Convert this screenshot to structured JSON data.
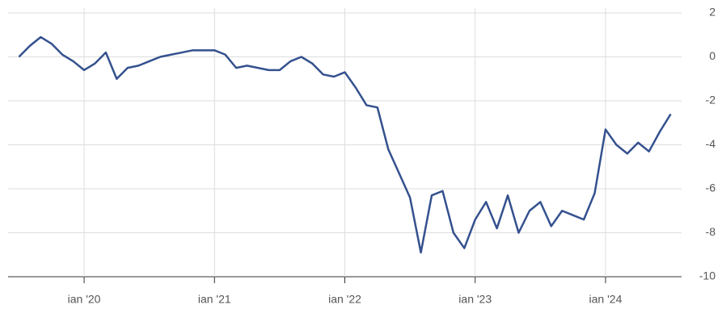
{
  "chart_data": {
    "type": "line",
    "x": [
      "2019-07",
      "2019-08",
      "2019-09",
      "2019-10",
      "2019-11",
      "2019-12",
      "2020-01",
      "2020-02",
      "2020-03",
      "2020-04",
      "2020-05",
      "2020-06",
      "2020-07",
      "2020-08",
      "2020-09",
      "2020-10",
      "2020-11",
      "2020-12",
      "2021-01",
      "2021-02",
      "2021-03",
      "2021-04",
      "2021-05",
      "2021-06",
      "2021-07",
      "2021-08",
      "2021-09",
      "2021-10",
      "2021-11",
      "2021-12",
      "2022-01",
      "2022-02",
      "2022-03",
      "2022-04",
      "2022-05",
      "2022-06",
      "2022-07",
      "2022-08",
      "2022-09",
      "2022-10",
      "2022-11",
      "2022-12",
      "2023-01",
      "2023-02",
      "2023-03",
      "2023-04",
      "2023-05",
      "2023-06",
      "2023-07",
      "2023-08",
      "2023-09",
      "2023-10",
      "2023-11",
      "2023-12",
      "2024-01",
      "2024-02",
      "2024-03",
      "2024-04",
      "2024-05",
      "2024-06",
      "2024-07"
    ],
    "values": [
      0,
      0.5,
      0.9,
      0.6,
      0.1,
      -0.2,
      -0.6,
      -0.3,
      0.2,
      -1.0,
      -0.5,
      -0.4,
      -0.2,
      0.0,
      0.1,
      0.2,
      0.3,
      0.3,
      0.3,
      0.1,
      -0.5,
      -0.4,
      -0.5,
      -0.6,
      -0.6,
      -0.2,
      0.0,
      -0.3,
      -0.8,
      -0.9,
      -0.7,
      -1.4,
      -2.2,
      -2.3,
      -4.2,
      -5.3,
      -6.4,
      -8.9,
      -6.3,
      -6.1,
      -8.0,
      -8.7,
      -7.4,
      -6.6,
      -7.8,
      -6.3,
      -8.0,
      -7.0,
      -6.6,
      -7.7,
      -7.0,
      -7.2,
      -7.4,
      -6.2,
      -3.3,
      -4.0,
      -4.4,
      -3.9,
      -4.3,
      -3.4,
      -2.6
    ],
    "color": "#34518e",
    "xlim": [
      "2019-06",
      "2024-08"
    ],
    "xticks": [
      {
        "value": "2020-01",
        "label": "ian '20"
      },
      {
        "value": "2021-01",
        "label": "ian '21"
      },
      {
        "value": "2022-01",
        "label": "ian '22"
      },
      {
        "value": "2023-01",
        "label": "ian '23"
      },
      {
        "value": "2024-01",
        "label": "ian '24"
      }
    ],
    "ylim": [
      -10,
      2
    ],
    "yticks": [
      -10,
      -8,
      -6,
      -4,
      -2,
      0,
      2
    ],
    "grid": true
  }
}
